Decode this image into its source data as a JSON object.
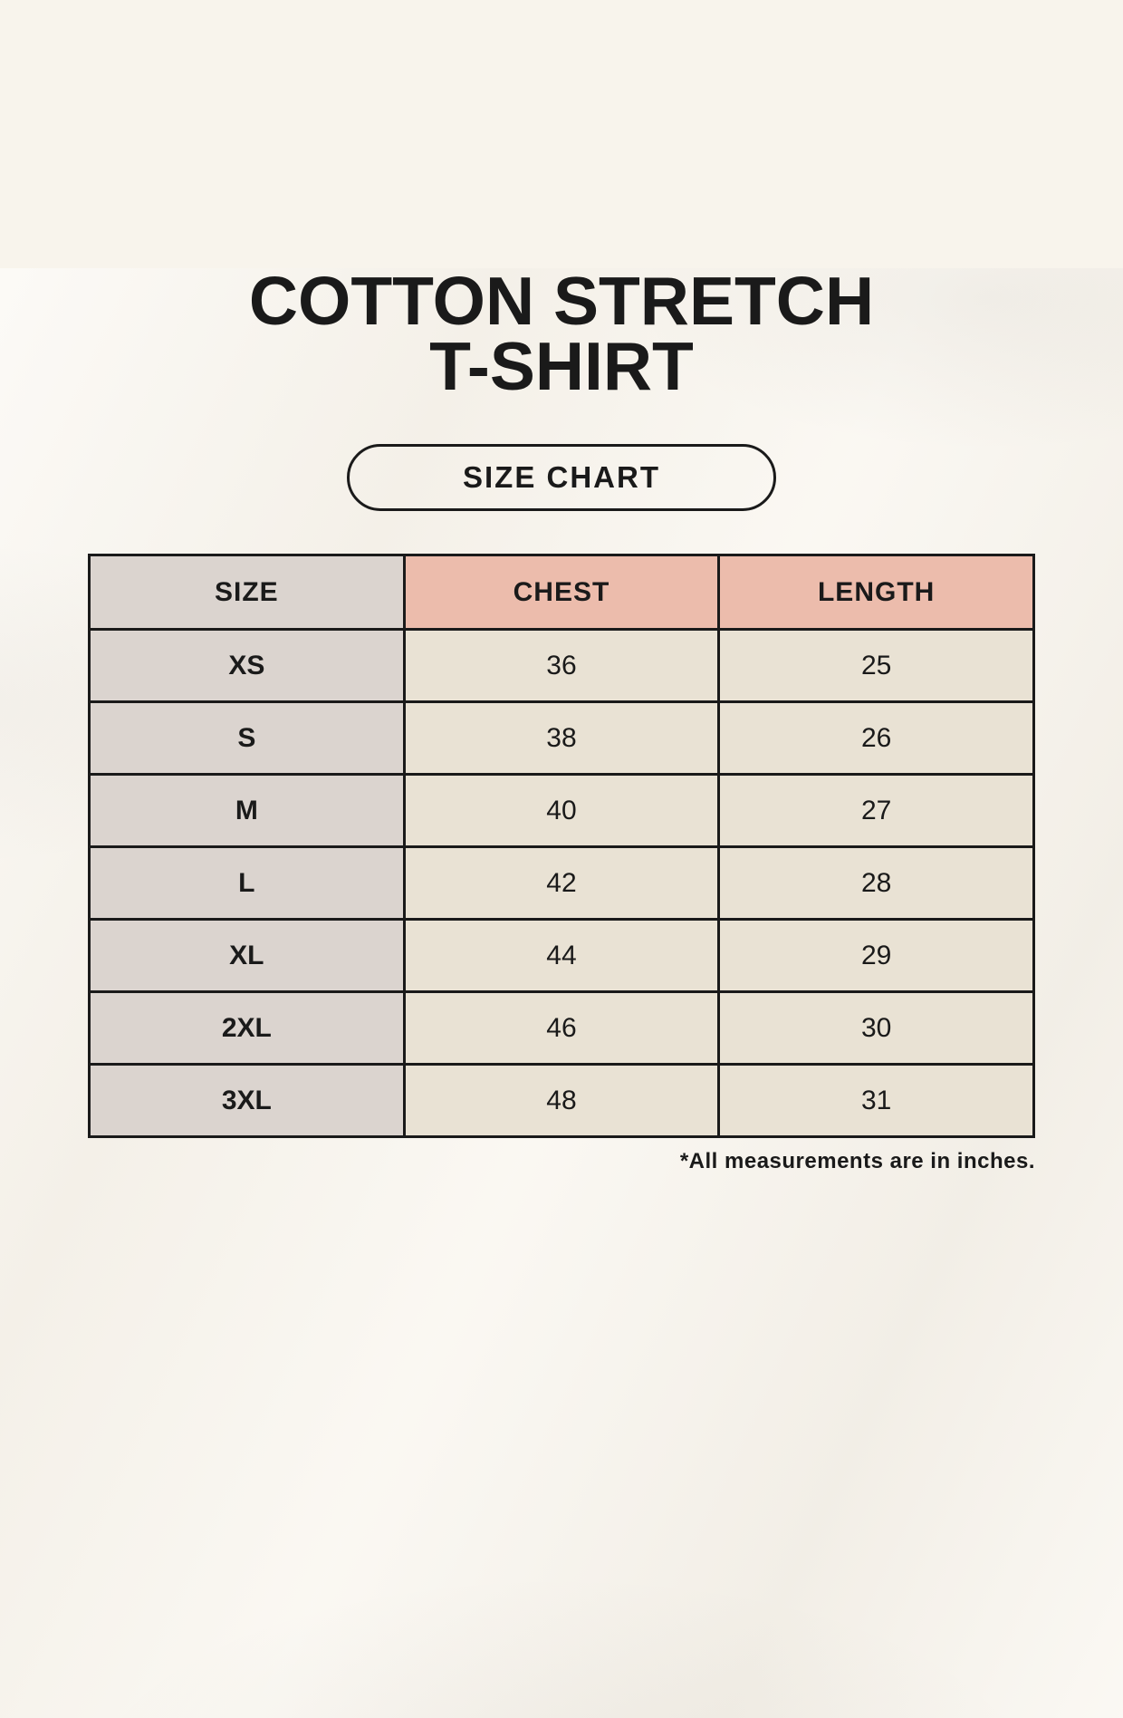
{
  "page": {
    "title_line1": "COTTON STRETCH",
    "title_line2": "T-SHIRT",
    "badge_label": "SIZE CHART",
    "footnote": "*All measurements are in inches."
  },
  "colors": {
    "background": "#F8F4EC",
    "header_accent_salmon": "#ECBCAC",
    "size_column_gray": "#DBD4CF",
    "data_cell_cream": "#E9E2D4",
    "border": "#1A1A1A",
    "text": "#1A1A1A"
  },
  "table": {
    "headers": [
      "SIZE",
      "CHEST",
      "LENGTH"
    ],
    "rows": [
      [
        "XS",
        "36",
        "25"
      ],
      [
        "S",
        "38",
        "26"
      ],
      [
        "M",
        "40",
        "27"
      ],
      [
        "L",
        "42",
        "28"
      ],
      [
        "XL",
        "44",
        "29"
      ],
      [
        "2XL",
        "46",
        "30"
      ],
      [
        "3XL",
        "48",
        "31"
      ]
    ]
  },
  "chart_data": {
    "type": "table",
    "title": "COTTON STRETCH T-SHIRT — SIZE CHART",
    "columns": [
      "SIZE",
      "CHEST",
      "LENGTH"
    ],
    "rows": [
      {
        "size": "XS",
        "chest": 36,
        "length": 25
      },
      {
        "size": "S",
        "chest": 38,
        "length": 26
      },
      {
        "size": "M",
        "chest": 40,
        "length": 27
      },
      {
        "size": "L",
        "chest": 42,
        "length": 28
      },
      {
        "size": "XL",
        "chest": 44,
        "length": 29
      },
      {
        "size": "2XL",
        "chest": 46,
        "length": 30
      },
      {
        "size": "3XL",
        "chest": 48,
        "length": 31
      }
    ],
    "units": "inches",
    "note": "*All measurements are in inches."
  }
}
